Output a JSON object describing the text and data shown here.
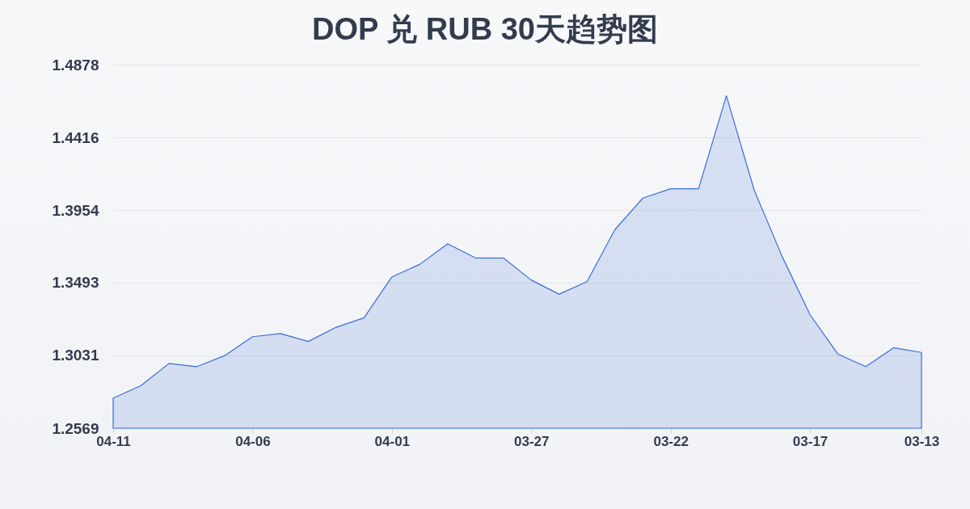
{
  "chart_data": {
    "type": "area",
    "title": "DOP 兑 RUB 30天趋势图",
    "categories": [
      "04-11",
      null,
      null,
      null,
      null,
      "04-06",
      null,
      null,
      null,
      null,
      "04-01",
      null,
      null,
      null,
      null,
      "03-27",
      null,
      null,
      null,
      null,
      "03-22",
      null,
      null,
      null,
      null,
      "03-17",
      null,
      null,
      null,
      "03-13"
    ],
    "values": [
      1.276,
      1.284,
      1.298,
      1.296,
      1.303,
      1.315,
      1.317,
      1.312,
      1.321,
      1.327,
      1.353,
      1.361,
      1.374,
      1.365,
      1.365,
      1.351,
      1.342,
      1.35,
      1.383,
      1.403,
      1.409,
      1.409,
      1.468,
      1.408,
      1.366,
      1.329,
      1.304,
      1.296,
      1.308,
      1.305
    ],
    "color": "#3a6cd6",
    "ylim": [
      1.2569,
      1.4878
    ],
    "yticks": [
      1.2569,
      1.3031,
      1.3493,
      1.3954,
      1.4416,
      1.4878
    ],
    "grid": "y"
  }
}
